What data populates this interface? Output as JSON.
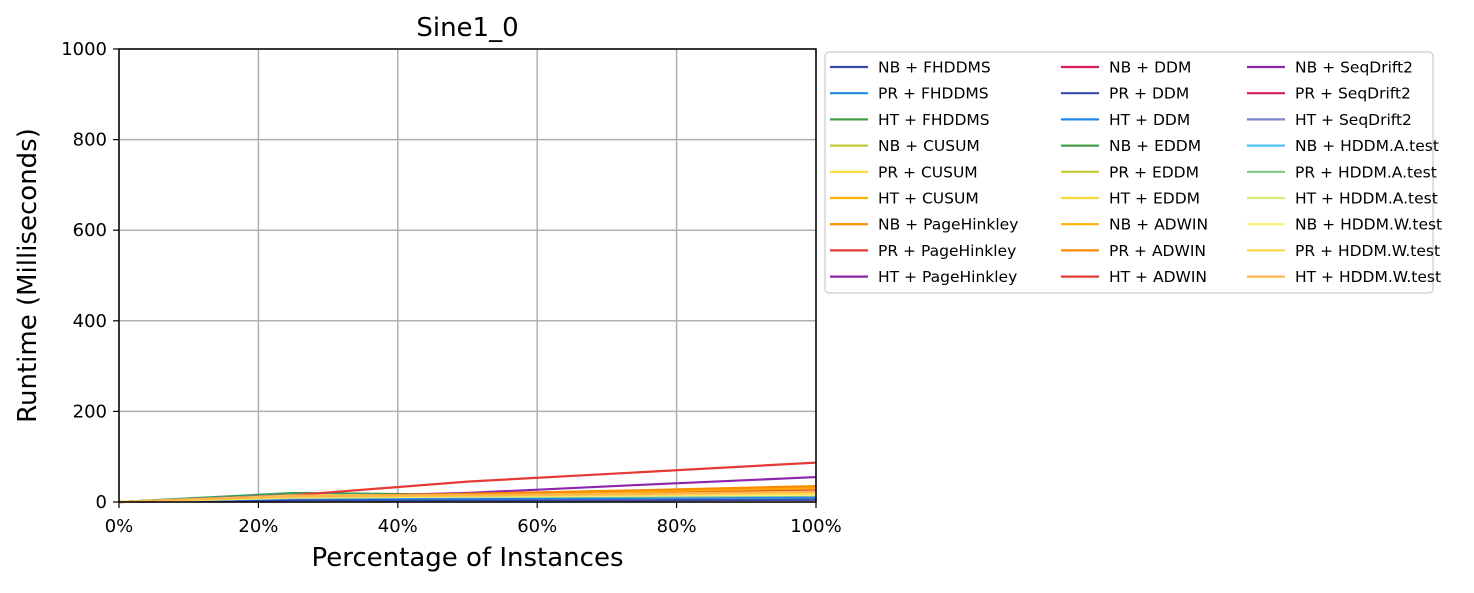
{
  "chart_data": {
    "type": "line",
    "title": "Sine1_0",
    "xlabel": "Percentage of Instances",
    "ylabel": "Runtime (Milliseconds)",
    "xlim": [
      0,
      100
    ],
    "ylim": [
      0,
      1000
    ],
    "x": [
      0,
      25,
      50,
      75,
      100
    ],
    "x_ticks": [
      0,
      20,
      40,
      60,
      80,
      100
    ],
    "x_tick_labels": [
      "0%",
      "20%",
      "40%",
      "60%",
      "80%",
      "100%"
    ],
    "y_ticks": [
      0,
      200,
      400,
      600,
      800,
      1000
    ],
    "y_tick_labels": [
      "0",
      "200",
      "400",
      "600",
      "800",
      "1000"
    ],
    "grid": true,
    "legend_position": "outside-right",
    "legend_columns": 3,
    "series": [
      {
        "name": "NB + FHDDMS",
        "color": "#3949ab",
        "values": [
          0,
          4,
          4,
          4,
          5
        ]
      },
      {
        "name": "PR + FHDDMS",
        "color": "#1e88e5",
        "values": [
          0,
          8,
          8,
          9,
          10
        ]
      },
      {
        "name": "HT + FHDDMS",
        "color": "#43a047",
        "values": [
          0,
          20,
          16,
          17,
          18
        ]
      },
      {
        "name": "NB + CUSUM",
        "color": "#c0ca33",
        "values": [
          0,
          12,
          11,
          12,
          14
        ]
      },
      {
        "name": "PR + CUSUM",
        "color": "#fdd835",
        "values": [
          0,
          13,
          12,
          14,
          16
        ]
      },
      {
        "name": "HT + CUSUM",
        "color": "#ffb300",
        "values": [
          0,
          14,
          14,
          16,
          20
        ]
      },
      {
        "name": "NB + PageHinkley",
        "color": "#fb8c00",
        "values": [
          0,
          13,
          14,
          20,
          30
        ]
      },
      {
        "name": "PR + PageHinkley",
        "color": "#e53935",
        "values": [
          0,
          12,
          13,
          18,
          25
        ]
      },
      {
        "name": "HT + PageHinkley",
        "color": "#8e24aa",
        "values": [
          0,
          10,
          20,
          38,
          55
        ]
      },
      {
        "name": "NB + DDM",
        "color": "#d81b60",
        "values": [
          0,
          10,
          12,
          14,
          16
        ]
      },
      {
        "name": "PR + DDM",
        "color": "#3949ab",
        "values": [
          0,
          11,
          12,
          14,
          17
        ]
      },
      {
        "name": "HT + DDM",
        "color": "#1e88e5",
        "values": [
          0,
          17,
          14,
          16,
          18
        ]
      },
      {
        "name": "NB + EDDM",
        "color": "#43a047",
        "values": [
          0,
          16,
          14,
          16,
          19
        ]
      },
      {
        "name": "PR + EDDM",
        "color": "#c0ca33",
        "values": [
          0,
          15,
          14,
          17,
          20
        ]
      },
      {
        "name": "HT + EDDM",
        "color": "#fdd835",
        "values": [
          0,
          15,
          15,
          18,
          22
        ]
      },
      {
        "name": "NB + ADWIN",
        "color": "#ffb300",
        "values": [
          0,
          12,
          16,
          24,
          32
        ]
      },
      {
        "name": "PR + ADWIN",
        "color": "#fb8c00",
        "values": [
          0,
          12,
          18,
          26,
          35
        ]
      },
      {
        "name": "HT + ADWIN",
        "color": "#e53935",
        "values": [
          0,
          15,
          45,
          66,
          87
        ]
      },
      {
        "name": "NB + SeqDrift2",
        "color": "#8e24aa",
        "values": [
          0,
          10,
          13,
          16,
          19
        ]
      },
      {
        "name": "PR + SeqDrift2",
        "color": "#d81b60",
        "values": [
          0,
          10,
          13,
          17,
          21
        ]
      },
      {
        "name": "HT + SeqDrift2",
        "color": "#7986cb",
        "values": [
          0,
          12,
          14,
          17,
          22
        ]
      },
      {
        "name": "NB + HDDM.A.test",
        "color": "#4fc3f7",
        "values": [
          0,
          9,
          11,
          13,
          15
        ]
      },
      {
        "name": "PR + HDDM.A.test",
        "color": "#81c784",
        "values": [
          0,
          10,
          12,
          14,
          17
        ]
      },
      {
        "name": "HT + HDDM.A.test",
        "color": "#dce775",
        "values": [
          0,
          14,
          13,
          15,
          18
        ]
      },
      {
        "name": "NB + HDDM.W.test",
        "color": "#fff176",
        "values": [
          0,
          10,
          12,
          14,
          16
        ]
      },
      {
        "name": "PR + HDDM.W.test",
        "color": "#ffd54f",
        "values": [
          0,
          11,
          13,
          16,
          19
        ]
      },
      {
        "name": "HT + HDDM.W.test",
        "color": "#ffb74d",
        "values": [
          0,
          13,
          15,
          18,
          23
        ]
      }
    ]
  }
}
